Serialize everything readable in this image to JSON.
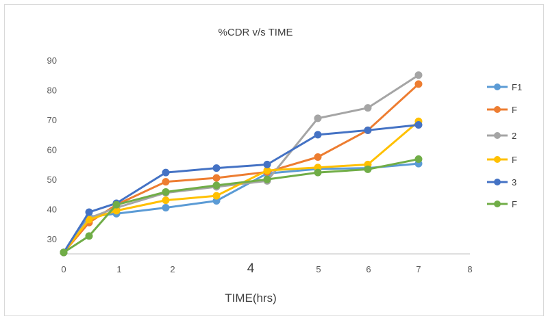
{
  "chart_data": {
    "type": "line",
    "title": "%CDR v/s TIME",
    "xlabel": "TIME(hrs)",
    "ylabel": "",
    "xlim": [
      0,
      8
    ],
    "ylim": [
      25,
      90
    ],
    "x_ticks": [
      "0",
      "1",
      "2",
      "4",
      "5",
      "6",
      "7",
      "8"
    ],
    "y_ticks": [
      "30",
      "40",
      "50",
      "60",
      "70",
      "80",
      "90"
    ],
    "x": [
      0,
      0.5,
      1,
      2,
      3,
      4,
      5,
      6,
      7
    ],
    "series": [
      {
        "name": "F1",
        "color": "#5b9bd5",
        "values": [
          25.5,
          37.5,
          38.5,
          40.5,
          42.8,
          52.0,
          53.5,
          53.8,
          55.3
        ]
      },
      {
        "name": "F",
        "color": "#ed7d31",
        "values": [
          25.5,
          35.5,
          41.5,
          49.2,
          50.5,
          52.5,
          57.5,
          66.5,
          82.0
        ]
      },
      {
        "name": "2",
        "color": "#a5a5a5",
        "values": [
          25.5,
          37.0,
          40.5,
          45.5,
          47.5,
          49.5,
          70.5,
          74.0,
          85.0
        ]
      },
      {
        "name": "F",
        "color": "#ffc000",
        "values": [
          25.5,
          36.5,
          39.5,
          43.0,
          44.5,
          53.0,
          54.0,
          55.0,
          69.5
        ]
      },
      {
        "name": "3",
        "color": "#4472c4",
        "values": [
          25.5,
          39.0,
          42.0,
          52.3,
          53.8,
          55.0,
          65.0,
          66.5,
          68.3
        ]
      },
      {
        "name": "F",
        "color": "#70ad47",
        "values": [
          25.5,
          31.0,
          41.5,
          45.8,
          48.0,
          50.0,
          52.3,
          53.4,
          56.8
        ]
      }
    ],
    "grid": false,
    "legend": "right"
  }
}
